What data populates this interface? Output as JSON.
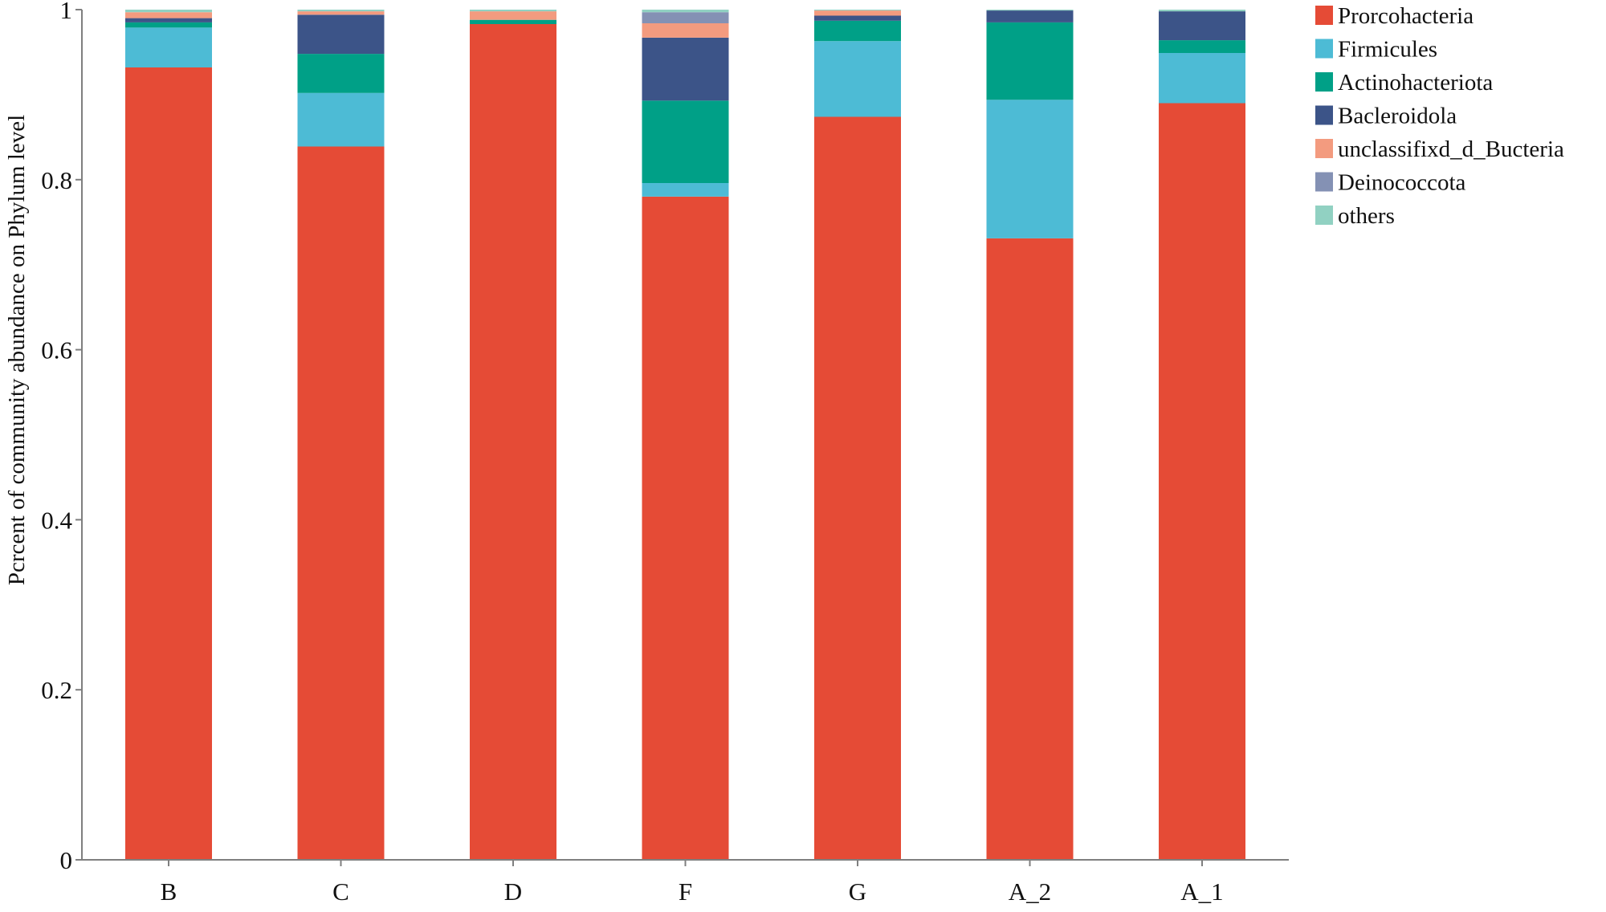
{
  "chart_data": {
    "type": "bar",
    "stacked": true,
    "title": "",
    "xlabel": "",
    "ylabel": "Pcrcent of community abundance on Phylum level",
    "ylim": [
      0,
      1
    ],
    "yticks": [
      0,
      0.2,
      0.4,
      0.6,
      0.8,
      1
    ],
    "ytick_labels": [
      "0",
      "0.2",
      "0.4",
      "0.6",
      "0.8",
      "1"
    ],
    "legend_position": "top-right",
    "categories": [
      "B",
      "C",
      "D",
      "F",
      "G",
      "A_2",
      "A_1"
    ],
    "series": [
      {
        "name": "Prorcohacteria",
        "color": "#e54b36",
        "values": [
          0.932,
          0.839,
          0.983,
          0.78,
          0.874,
          0.731,
          0.89
        ]
      },
      {
        "name": "Firmicules",
        "color": "#4dbbd5",
        "values": [
          0.047,
          0.063,
          0.0,
          0.016,
          0.089,
          0.163,
          0.059
        ]
      },
      {
        "name": "Actinohacteriota",
        "color": "#00a087",
        "values": [
          0.006,
          0.046,
          0.005,
          0.097,
          0.024,
          0.091,
          0.015
        ]
      },
      {
        "name": "Bacleroidola",
        "color": "#3c5488",
        "values": [
          0.005,
          0.046,
          0.0,
          0.074,
          0.006,
          0.014,
          0.034
        ]
      },
      {
        "name": "unclassifixd_d_Bucteria",
        "color": "#f39b7f",
        "values": [
          0.007,
          0.004,
          0.01,
          0.017,
          0.006,
          0.0,
          0.0
        ]
      },
      {
        "name": "Deinococcota",
        "color": "#8491b4",
        "values": [
          0.0,
          0.0,
          0.0,
          0.013,
          0.0,
          0.0,
          0.0
        ]
      },
      {
        "name": "others",
        "color": "#91d1c2",
        "values": [
          0.003,
          0.002,
          0.002,
          0.003,
          0.001,
          0.001,
          0.002
        ]
      }
    ]
  }
}
